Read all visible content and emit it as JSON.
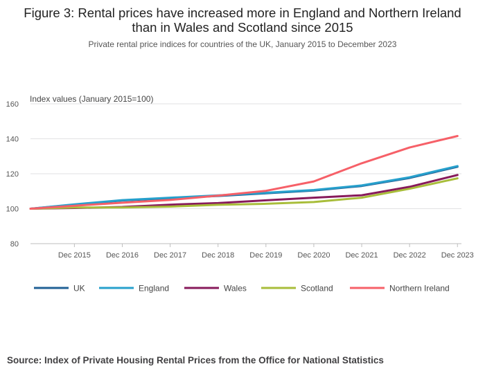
{
  "chart_data": {
    "type": "line",
    "title": "Figure 3: Rental prices have increased more in England and Northern Ireland than in Wales and Scotland since 2015",
    "subtitle": "Private rental price indices for countries of the UK, January 2015 to December 2023",
    "ylabel": "Index values (January 2015=100)",
    "xlabel": "",
    "ylim": [
      80,
      160
    ],
    "yticks": [
      80,
      100,
      120,
      140,
      160
    ],
    "xlim": [
      2015.0,
      2024.0
    ],
    "xticks": [
      {
        "label": "Dec 2015",
        "x": 2015.917
      },
      {
        "label": "Dec 2016",
        "x": 2016.917
      },
      {
        "label": "Dec 2017",
        "x": 2017.917
      },
      {
        "label": "Dec 2018",
        "x": 2018.917
      },
      {
        "label": "Dec 2019",
        "x": 2019.917
      },
      {
        "label": "Dec 2020",
        "x": 2020.917
      },
      {
        "label": "Dec 2021",
        "x": 2021.917
      },
      {
        "label": "Dec 2022",
        "x": 2022.917
      },
      {
        "label": "Dec 2023",
        "x": 2023.917
      }
    ],
    "grid": "horizontal",
    "legend_position": "bottom",
    "series": [
      {
        "name": "UK",
        "color": "#206095",
        "x": [
          2015.0,
          2015.917,
          2016.917,
          2017.917,
          2018.917,
          2019.917,
          2020.917,
          2021.917,
          2022.917,
          2023.917
        ],
        "values": [
          100.0,
          102.3,
          104.7,
          106.0,
          107.3,
          108.8,
          110.4,
          113.0,
          117.6,
          124.0
        ]
      },
      {
        "name": "England",
        "color": "#27A0CC",
        "x": [
          2015.0,
          2015.917,
          2016.917,
          2017.917,
          2018.917,
          2019.917,
          2020.917,
          2021.917,
          2022.917,
          2023.917
        ],
        "values": [
          100.0,
          102.5,
          104.9,
          106.3,
          107.6,
          109.1,
          110.7,
          113.3,
          118.0,
          124.4
        ]
      },
      {
        "name": "Wales",
        "color": "#871A5B",
        "x": [
          2015.0,
          2015.917,
          2016.917,
          2017.917,
          2018.917,
          2019.917,
          2020.917,
          2021.917,
          2022.917,
          2023.917
        ],
        "values": [
          100.0,
          100.4,
          101.0,
          102.3,
          103.2,
          104.8,
          106.3,
          107.7,
          112.5,
          119.3
        ]
      },
      {
        "name": "Scotland",
        "color": "#A8BD3A",
        "x": [
          2015.0,
          2015.917,
          2016.917,
          2017.917,
          2018.917,
          2019.917,
          2020.917,
          2021.917,
          2022.917,
          2023.917
        ],
        "values": [
          100.0,
          100.7,
          100.7,
          101.2,
          102.2,
          102.8,
          103.8,
          106.3,
          111.4,
          117.4
        ]
      },
      {
        "name": "Northern Ireland",
        "color": "#F66068",
        "x": [
          2015.0,
          2015.917,
          2016.917,
          2017.917,
          2018.917,
          2019.917,
          2020.917,
          2021.917,
          2022.917,
          2023.917
        ],
        "values": [
          100.0,
          101.7,
          103.4,
          105.0,
          107.5,
          110.2,
          115.6,
          126.0,
          135.0,
          141.6
        ]
      }
    ]
  },
  "source": "Source: Index of Private Housing Rental Prices from the Office for National Statistics"
}
